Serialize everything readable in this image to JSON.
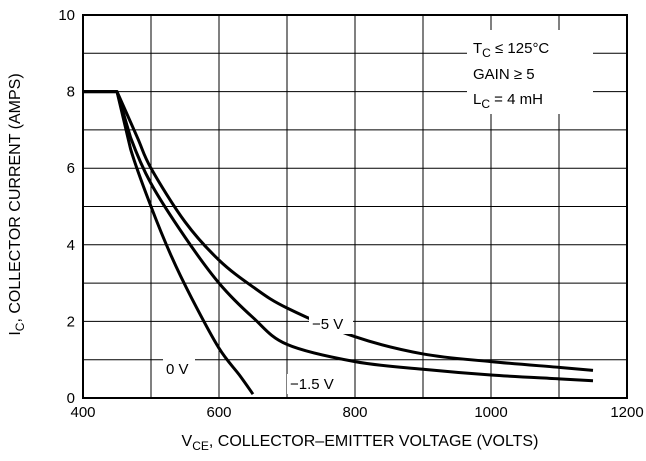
{
  "chart_data": {
    "type": "line",
    "xlim": [
      400,
      1200
    ],
    "ylim": [
      0,
      10
    ],
    "x_ticks": [
      400,
      600,
      800,
      1000,
      1200
    ],
    "y_ticks": [
      0,
      2,
      4,
      6,
      8,
      10
    ],
    "grid": true,
    "xlabel": {
      "main": "V",
      "sub": "CE",
      "rest": ", COLLECTOR–EMITTER VOLTAGE (VOLTS)"
    },
    "ylabel": {
      "main": "I",
      "sub": "C",
      "rest": ", COLLECTOR CURRENT (AMPS)"
    },
    "annotations": [
      {
        "main": "T",
        "sub": "C",
        "rest": " ≤ 125°C"
      },
      {
        "main": "GAIN ≥ 5",
        "sub": "",
        "rest": ""
      },
      {
        "main": "L",
        "sub": "C",
        "rest": " = 4 mH"
      }
    ],
    "series": [
      {
        "name": "0 V",
        "x": [
          400,
          450,
          470,
          500,
          530,
          560,
          600,
          630,
          650
        ],
        "y": [
          8,
          8,
          6.5,
          5.0,
          3.7,
          2.6,
          1.3,
          0.6,
          0.1
        ]
      },
      {
        "name": "−1.5 V",
        "x": [
          400,
          450,
          470,
          500,
          550,
          600,
          650,
          700,
          800,
          900,
          1000,
          1100,
          1150
        ],
        "y": [
          8,
          8,
          6.8,
          5.6,
          4.2,
          3.0,
          2.1,
          1.4,
          0.95,
          0.75,
          0.6,
          0.5,
          0.45
        ]
      },
      {
        "name": "−5 V",
        "x": [
          400,
          450,
          480,
          500,
          550,
          600,
          650,
          700,
          800,
          900,
          1000,
          1100,
          1150
        ],
        "y": [
          8,
          8,
          6.8,
          6.0,
          4.6,
          3.6,
          2.9,
          2.35,
          1.6,
          1.15,
          0.95,
          0.8,
          0.72
        ]
      }
    ],
    "series_labels": [
      "0 V",
      "−1.5 V",
      "−5 V"
    ]
  }
}
